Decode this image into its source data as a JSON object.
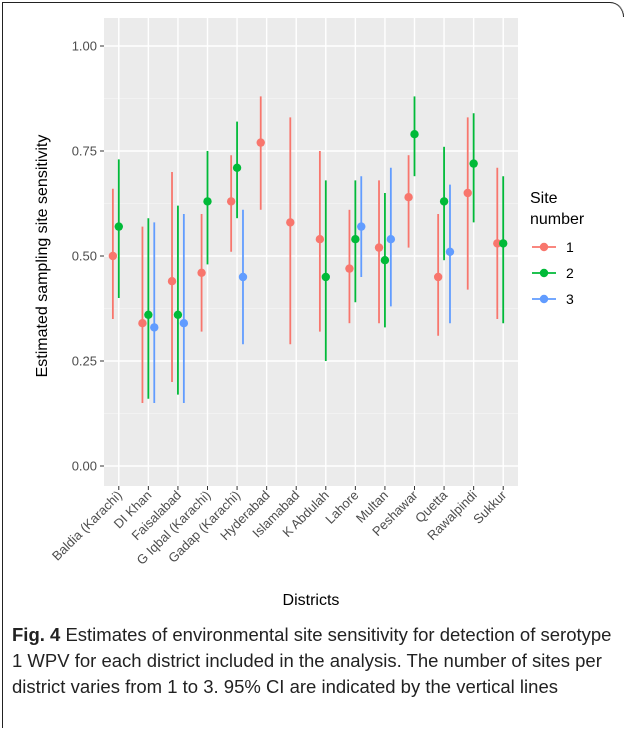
{
  "chart_data": {
    "type": "scatter",
    "subtype": "point-range",
    "xlabel": "Districts",
    "ylabel": "Estimated sampling site sensitivity",
    "ylim": [
      0,
      1
    ],
    "yticks": [
      "0.00",
      "0.25",
      "0.50",
      "0.75",
      "1.00"
    ],
    "categories": [
      "Baldia (Karachi)",
      "DI Khan",
      "Faisalabad",
      "G Iqbal (Karachi)",
      "Gadap (Karachi)",
      "Hyderabad",
      "Islamabad",
      "K Abdulah",
      "Lahore",
      "Multan",
      "Peshawar",
      "Quetta",
      "Rawalpindi",
      "Sukkur"
    ],
    "legend": {
      "title": "Site\nnumber",
      "position": "right",
      "items": [
        "1",
        "2",
        "3"
      ]
    },
    "grid": true,
    "series": [
      {
        "name": "1",
        "color": "#F8766D",
        "points": [
          {
            "category": "Baldia (Karachi)",
            "y": 0.5,
            "lo": 0.35,
            "hi": 0.66
          },
          {
            "category": "DI Khan",
            "y": 0.34,
            "lo": 0.15,
            "hi": 0.57
          },
          {
            "category": "Faisalabad",
            "y": 0.44,
            "lo": 0.2,
            "hi": 0.7
          },
          {
            "category": "G Iqbal (Karachi)",
            "y": 0.46,
            "lo": 0.32,
            "hi": 0.6
          },
          {
            "category": "Gadap (Karachi)",
            "y": 0.63,
            "lo": 0.51,
            "hi": 0.74
          },
          {
            "category": "Hyderabad",
            "y": 0.77,
            "lo": 0.61,
            "hi": 0.88
          },
          {
            "category": "Islamabad",
            "y": 0.58,
            "lo": 0.29,
            "hi": 0.83
          },
          {
            "category": "K Abdulah",
            "y": 0.54,
            "lo": 0.32,
            "hi": 0.75
          },
          {
            "category": "Lahore",
            "y": 0.47,
            "lo": 0.34,
            "hi": 0.61
          },
          {
            "category": "Multan",
            "y": 0.52,
            "lo": 0.34,
            "hi": 0.68
          },
          {
            "category": "Peshawar",
            "y": 0.64,
            "lo": 0.52,
            "hi": 0.74
          },
          {
            "category": "Quetta",
            "y": 0.45,
            "lo": 0.31,
            "hi": 0.6
          },
          {
            "category": "Rawalpindi",
            "y": 0.65,
            "lo": 0.42,
            "hi": 0.83
          },
          {
            "category": "Sukkur",
            "y": 0.53,
            "lo": 0.35,
            "hi": 0.71
          }
        ]
      },
      {
        "name": "2",
        "color": "#00BA38",
        "points": [
          {
            "category": "Baldia (Karachi)",
            "y": 0.57,
            "lo": 0.4,
            "hi": 0.73
          },
          {
            "category": "DI Khan",
            "y": 0.36,
            "lo": 0.16,
            "hi": 0.59
          },
          {
            "category": "Faisalabad",
            "y": 0.36,
            "lo": 0.17,
            "hi": 0.62
          },
          {
            "category": "G Iqbal (Karachi)",
            "y": 0.63,
            "lo": 0.48,
            "hi": 0.75
          },
          {
            "category": "Gadap (Karachi)",
            "y": 0.71,
            "lo": 0.59,
            "hi": 0.82
          },
          {
            "category": "K Abdulah",
            "y": 0.45,
            "lo": 0.25,
            "hi": 0.68
          },
          {
            "category": "Lahore",
            "y": 0.54,
            "lo": 0.39,
            "hi": 0.68
          },
          {
            "category": "Multan",
            "y": 0.49,
            "lo": 0.33,
            "hi": 0.65
          },
          {
            "category": "Peshawar",
            "y": 0.79,
            "lo": 0.69,
            "hi": 0.88
          },
          {
            "category": "Quetta",
            "y": 0.63,
            "lo": 0.49,
            "hi": 0.76
          },
          {
            "category": "Rawalpindi",
            "y": 0.72,
            "lo": 0.58,
            "hi": 0.84
          },
          {
            "category": "Sukkur",
            "y": 0.53,
            "lo": 0.34,
            "hi": 0.69
          }
        ]
      },
      {
        "name": "3",
        "color": "#619CFF",
        "points": [
          {
            "category": "DI Khan",
            "y": 0.33,
            "lo": 0.15,
            "hi": 0.58
          },
          {
            "category": "Faisalabad",
            "y": 0.34,
            "lo": 0.15,
            "hi": 0.6
          },
          {
            "category": "Gadap (Karachi)",
            "y": 0.45,
            "lo": 0.29,
            "hi": 0.61
          },
          {
            "category": "Lahore",
            "y": 0.57,
            "lo": 0.45,
            "hi": 0.69
          },
          {
            "category": "Multan",
            "y": 0.54,
            "lo": 0.38,
            "hi": 0.71
          },
          {
            "category": "Quetta",
            "y": 0.51,
            "lo": 0.34,
            "hi": 0.67
          }
        ]
      }
    ]
  },
  "caption": {
    "label": "Fig. 4",
    "text": " Estimates of environmental site sensitivity for detection of serotype 1 WPV for each district included in the analysis. The number of sites per district varies from 1 to 3. 95% CI are indicated by the vertical lines"
  }
}
